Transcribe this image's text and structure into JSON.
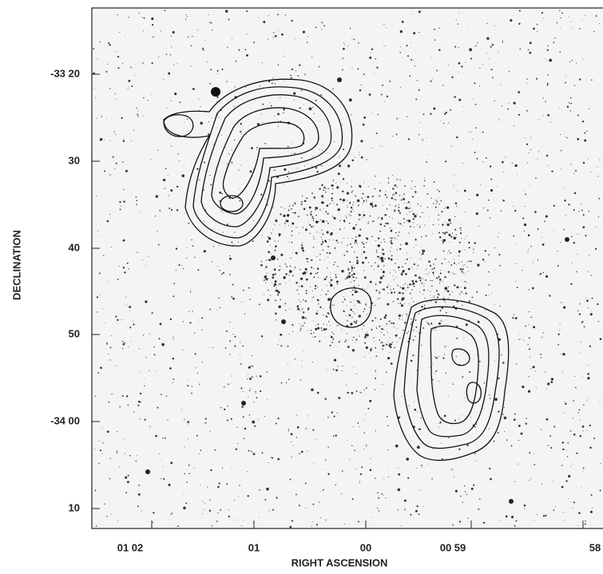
{
  "figure": {
    "x_label": "RIGHT ASCENSION",
    "y_label": "DECLINATION",
    "x_ticks": [
      "01 02",
      "01",
      "00",
      "00 59",
      "58"
    ],
    "y_ticks": [
      "-33 20",
      "30",
      "40",
      "50",
      "-34 00",
      "10"
    ]
  }
}
